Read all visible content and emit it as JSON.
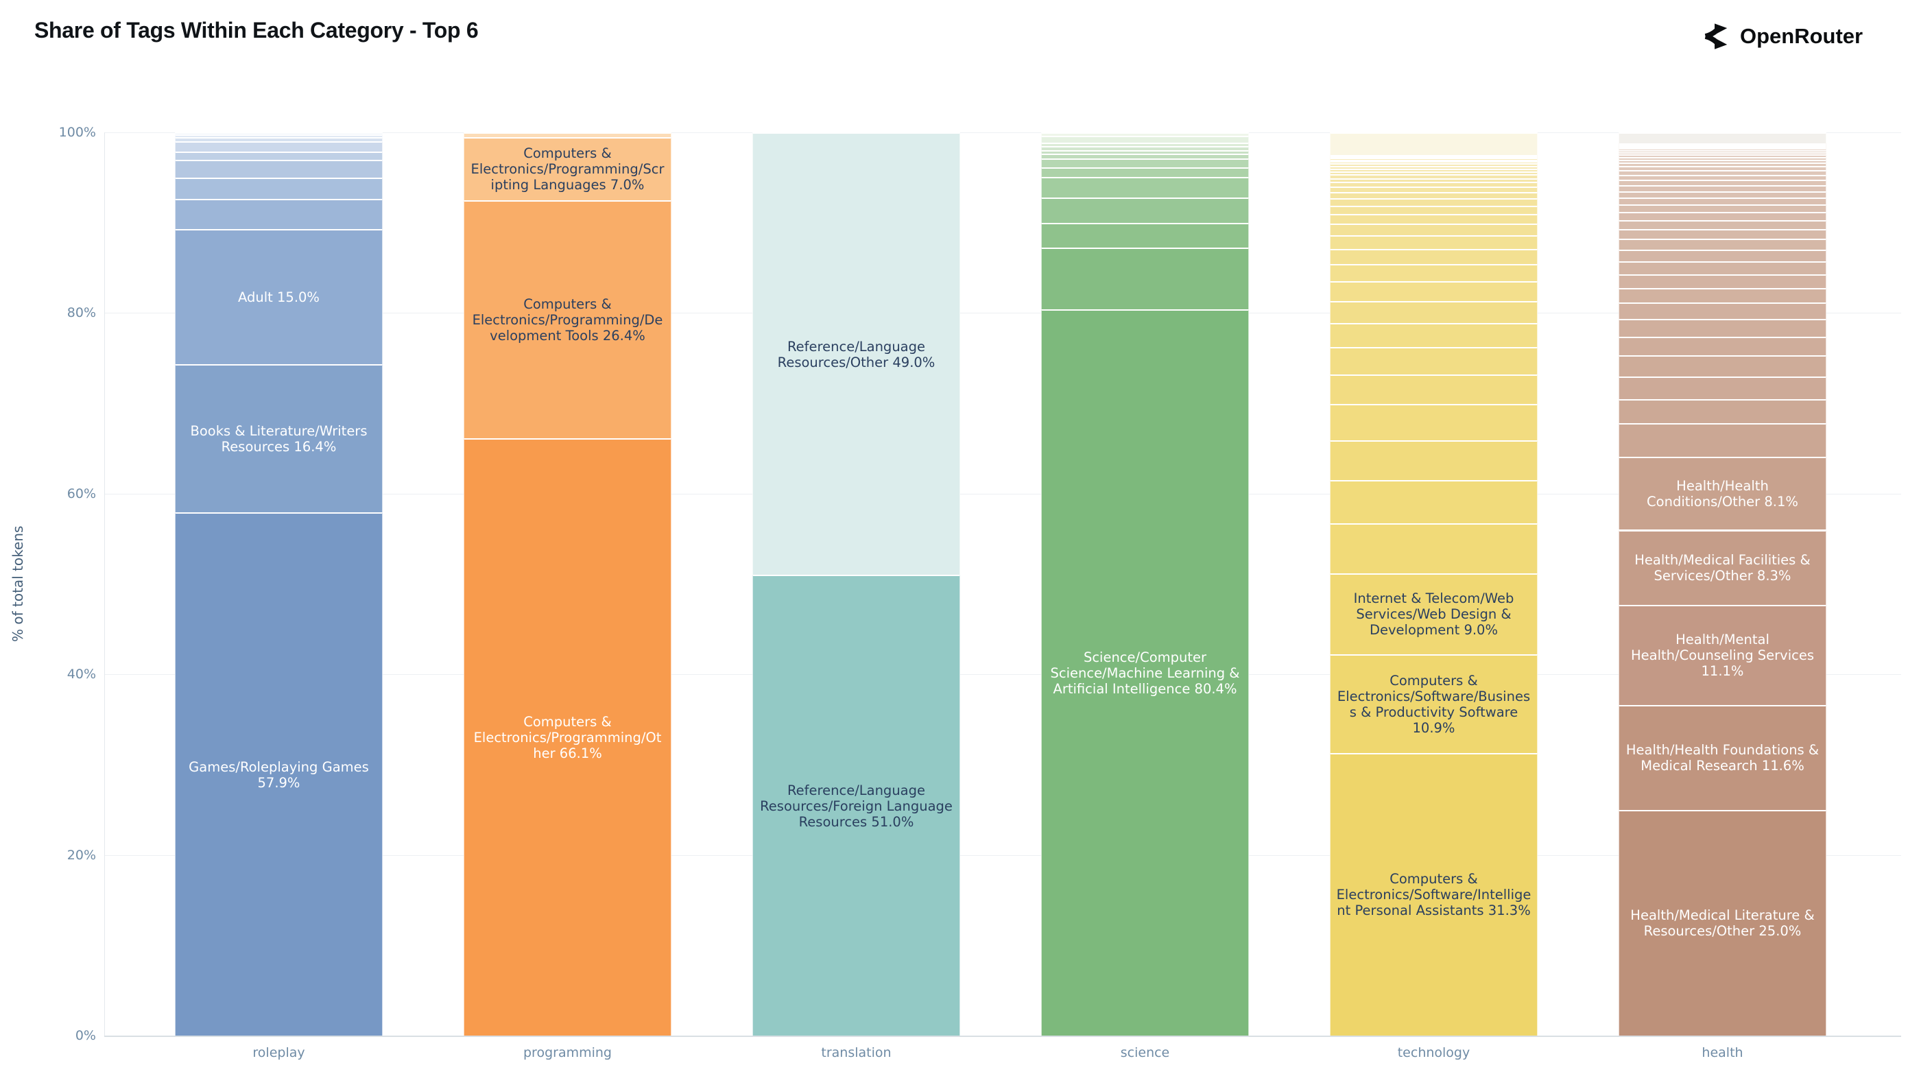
{
  "header": {
    "title": "Share of Tags Within Each Category - Top 6",
    "brand": "OpenRouter"
  },
  "chart_data": {
    "type": "bar",
    "stacked": true,
    "orientation": "vertical",
    "units": "percent of total tokens per category",
    "title": "Share of Tags Within Each Category - Top 6",
    "xlabel": "",
    "ylabel": "% of total tokens",
    "ylim": [
      0,
      100
    ],
    "ytick_labels": [
      "0%",
      "20%",
      "40%",
      "60%",
      "80%",
      "100%"
    ],
    "ytick_values": [
      0,
      20,
      40,
      60,
      80,
      100
    ],
    "grid": true,
    "legend": false,
    "label_text_dark": "#2a3f5f",
    "categories": [
      "roleplay",
      "programming",
      "translation",
      "science",
      "technology",
      "health"
    ],
    "bars": [
      {
        "category": "roleplay",
        "unlabeled_fade": [
          "#9db6d8",
          "#edf2f9"
        ],
        "segments": [
          {
            "label": "Games/Roleplaying Games",
            "value": 57.9,
            "color": "#7798c5",
            "text_color": "#ffffff",
            "labeled": true
          },
          {
            "label": "Books & Literature/Writers Resources",
            "value": 16.4,
            "color": "#84a3cb",
            "text_color": "#ffffff",
            "labeled": true
          },
          {
            "label": "Adult",
            "value": 15.0,
            "color": "#90acd2",
            "text_color": "#ffffff",
            "labeled": true
          },
          {
            "value": 3.3,
            "labeled": false
          },
          {
            "value": 2.4,
            "labeled": false
          },
          {
            "value": 2.0,
            "labeled": false
          },
          {
            "value": 0.9,
            "labeled": false
          },
          {
            "value": 1.1,
            "labeled": false
          },
          {
            "value": 0.5,
            "labeled": false
          },
          {
            "value": 0.3,
            "labeled": false
          },
          {
            "value": 0.2,
            "labeled": false
          }
        ]
      },
      {
        "category": "programming",
        "unlabeled_fade": [
          "#fcdcb7",
          "#fcdcb7"
        ],
        "segments": [
          {
            "label": "Computers & Electronics/Programming/Other",
            "value": 66.1,
            "color": "#f89b4d",
            "text_color": "#ffffff",
            "labeled": true
          },
          {
            "label": "Computers & Electronics/Programming/Development Tools",
            "value": 26.4,
            "color": "#f9ad68",
            "text_color": "#2a3f5f",
            "labeled": true
          },
          {
            "label": "Computers & Electronics/Programming/Scripting Languages",
            "value": 7.0,
            "color": "#fac38a",
            "text_color": "#2a3f5f",
            "labeled": true
          },
          {
            "value": 0.5,
            "labeled": false
          }
        ]
      },
      {
        "category": "translation",
        "unlabeled_fade": [
          "#ffffff",
          "#ffffff"
        ],
        "segments": [
          {
            "label": "Reference/Language Resources/Foreign Language Resources",
            "value": 51.0,
            "color": "#93c9c5",
            "text_color": "#2a3f5f",
            "labeled": true
          },
          {
            "label": "Reference/Language Resources/Other",
            "value": 49.0,
            "color": "#dcedec",
            "text_color": "#2a3f5f",
            "labeled": true
          }
        ]
      },
      {
        "category": "science",
        "unlabeled_fade": [
          "#85bd83",
          "#eff6ea"
        ],
        "segments": [
          {
            "label": "Science/Computer Science/Machine Learning & Artificial Intelligence",
            "value": 80.4,
            "color": "#7db97c",
            "text_color": "#ffffff",
            "labeled": true
          },
          {
            "value": 6.85,
            "labeled": false
          },
          {
            "value": 2.7,
            "labeled": false
          },
          {
            "value": 2.8,
            "labeled": false
          },
          {
            "value": 2.3,
            "labeled": false
          },
          {
            "value": 1.1,
            "labeled": false
          },
          {
            "value": 1.0,
            "labeled": false
          },
          {
            "value": 0.5,
            "labeled": false
          },
          {
            "value": 0.4,
            "labeled": false
          },
          {
            "value": 0.4,
            "labeled": false
          },
          {
            "value": 0.4,
            "labeled": false
          },
          {
            "value": 0.75,
            "labeled": false
          },
          {
            "value": 0.4,
            "labeled": false
          }
        ]
      },
      {
        "category": "technology",
        "unlabeled_fade": [
          "#f1da78",
          "#f7ecc2"
        ],
        "segments": [
          {
            "label": "Computers & Electronics/Software/Intelligent Personal Assistants",
            "value": 31.3,
            "color": "#eed56a",
            "text_color": "#2a3f5f",
            "labeled": true
          },
          {
            "label": "Computers & Electronics/Software/Business & Productivity Software",
            "value": 10.9,
            "color": "#efd76f",
            "text_color": "#2a3f5f",
            "labeled": true
          },
          {
            "label": "Internet & Telecom/Web Services/Web Design & Development",
            "value": 9.0,
            "color": "#f0d873",
            "text_color": "#2a3f5f",
            "labeled": true
          },
          {
            "value": 5.5,
            "labeled": false
          },
          {
            "value": 4.8,
            "labeled": false
          },
          {
            "value": 4.4,
            "labeled": false
          },
          {
            "value": 4.0,
            "labeled": false
          },
          {
            "value": 3.3,
            "labeled": false
          },
          {
            "value": 3.0,
            "labeled": false
          },
          {
            "value": 2.7,
            "labeled": false
          },
          {
            "value": 2.4,
            "labeled": false
          },
          {
            "value": 2.2,
            "labeled": false
          },
          {
            "value": 1.9,
            "labeled": false
          },
          {
            "value": 1.7,
            "labeled": false
          },
          {
            "value": 1.5,
            "labeled": false
          },
          {
            "value": 1.3,
            "labeled": false
          },
          {
            "value": 1.1,
            "labeled": false
          },
          {
            "value": 0.9,
            "labeled": false
          },
          {
            "value": 0.8,
            "labeled": false
          },
          {
            "value": 0.7,
            "labeled": false
          },
          {
            "value": 0.6,
            "labeled": false
          },
          {
            "value": 0.5,
            "labeled": false
          },
          {
            "value": 0.45,
            "labeled": false
          },
          {
            "value": 0.4,
            "labeled": false
          },
          {
            "value": 0.35,
            "labeled": false
          },
          {
            "value": 0.3,
            "labeled": false
          },
          {
            "value": 0.3,
            "labeled": false
          },
          {
            "value": 0.25,
            "labeled": false
          },
          {
            "value": 0.25,
            "labeled": false
          },
          {
            "value": 0.2,
            "labeled": false
          },
          {
            "value": 0.2,
            "labeled": false
          },
          {
            "value": 0.15,
            "labeled": false
          },
          {
            "value": 0.15,
            "labeled": false
          },
          {
            "value": 2.5,
            "labeled": false,
            "color": "#faf6e3"
          }
        ]
      },
      {
        "category": "health",
        "unlabeled_fade": [
          "#cba794",
          "#ead9ce"
        ],
        "segments": [
          {
            "label": "Health/Medical Literature & Resources/Other",
            "value": 25.0,
            "color": "#bd917a",
            "text_color": "#ffffff",
            "labeled": true
          },
          {
            "label": "Health/Health Foundations & Medical Research",
            "value": 11.6,
            "color": "#c0957f",
            "text_color": "#ffffff",
            "labeled": true
          },
          {
            "label": "Health/Mental Health/Counseling Services",
            "value": 11.1,
            "color": "#c39986",
            "text_color": "#ffffff",
            "labeled": true
          },
          {
            "label": "Health/Medical Facilities & Services/Other",
            "value": 8.3,
            "color": "#c59d89",
            "text_color": "#ffffff",
            "labeled": true
          },
          {
            "label": "Health/Health Conditions/Other",
            "value": 8.1,
            "color": "#c8a28e",
            "text_color": "#ffffff",
            "labeled": true
          },
          {
            "value": 3.7,
            "labeled": false
          },
          {
            "value": 2.7,
            "labeled": false
          },
          {
            "value": 2.5,
            "labeled": false
          },
          {
            "value": 2.3,
            "labeled": false
          },
          {
            "value": 2.1,
            "labeled": false
          },
          {
            "value": 1.95,
            "labeled": false
          },
          {
            "value": 1.8,
            "labeled": false
          },
          {
            "value": 1.65,
            "labeled": false
          },
          {
            "value": 1.5,
            "labeled": false
          },
          {
            "value": 1.4,
            "labeled": false
          },
          {
            "value": 1.3,
            "labeled": false
          },
          {
            "value": 1.2,
            "labeled": false
          },
          {
            "value": 1.1,
            "labeled": false
          },
          {
            "value": 1.0,
            "labeled": false
          },
          {
            "value": 0.9,
            "labeled": false
          },
          {
            "value": 0.85,
            "labeled": false
          },
          {
            "value": 0.75,
            "labeled": false
          },
          {
            "value": 0.7,
            "labeled": false
          },
          {
            "value": 0.65,
            "labeled": false
          },
          {
            "value": 0.6,
            "labeled": false
          },
          {
            "value": 0.55,
            "labeled": false
          },
          {
            "value": 0.5,
            "labeled": false
          },
          {
            "value": 0.45,
            "labeled": false
          },
          {
            "value": 0.4,
            "labeled": false
          },
          {
            "value": 0.35,
            "labeled": false
          },
          {
            "value": 0.3,
            "labeled": false
          },
          {
            "value": 0.28,
            "labeled": false
          },
          {
            "value": 0.25,
            "labeled": false
          },
          {
            "value": 0.22,
            "labeled": false
          },
          {
            "value": 0.2,
            "labeled": false
          },
          {
            "value": 0.18,
            "labeled": false
          },
          {
            "value": 0.15,
            "labeled": false
          },
          {
            "value": 0.12,
            "labeled": false
          },
          {
            "value": 0.1,
            "labeled": false
          },
          {
            "value": 1.2,
            "labeled": false,
            "color": "#f2f0ec"
          }
        ]
      }
    ]
  }
}
